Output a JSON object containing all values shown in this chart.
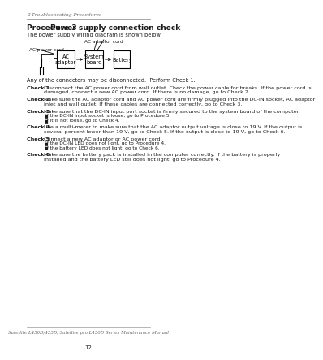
{
  "header_text": "2 Troubleshooting Procedures",
  "procedure_label": "Procedure 3",
  "procedure_tab": "    Power supply connection check",
  "intro_text": "The power supply wiring diagram is shown below:",
  "diagram_labels": {
    "ac_adaptor_cord": "AC adaptor cord",
    "ac_power_cord": "AC power cord",
    "ac_adaptor": "AC\nadaptor",
    "system_board": "System\nboard",
    "battery": "Battery"
  },
  "intro_check": "Any of the connectors may be disconnected.  Perform Check 1.",
  "checks": [
    {
      "label": "Check 1",
      "text": "Disconnect the AC power cord from wall outlet. Check the power cable for breaks. If the power cord is damaged, connect a new AC power cord. If there is no damage, go to Check 2.",
      "bullets": []
    },
    {
      "label": "Check 2",
      "text": "Make sure the AC adaptor cord and AC power cord are firmly plugged into the DC-IN socket, AC adaptor inlet and wall outlet. If these cables are connected correctly, go to Check 3.",
      "bullets": []
    },
    {
      "label": "Check 3",
      "text": "Make sure that the DC-IN input port socket is firmly secured to the system board of the computer.",
      "bullets": [
        "If the DC-IN input socket is loose, go to Procedure 5.",
        "If it is not loose, go to Check 4."
      ]
    },
    {
      "label": "Check 4",
      "text": "Use a multi-meter to make sure that the AC adaptor output voltage is close to 19 V.  If the output is several percent lower than 19 V, go to Check 5.  If the output is close to 19 V, go to Check 6.",
      "bullets": []
    },
    {
      "label": "Check 5",
      "text": "Connect a new AC adaptor or AC power cord.",
      "bullets": [
        "If the DC-IN LED does not light, go to Procedure 4.",
        "If the battery LED does not light, go to Check 6."
      ]
    },
    {
      "label": "Check 6",
      "text": "Make sure the battery pack is installed in the computer correctly.  If the battery is properly installed and the battery LED still does not light, go to Procedure 4.",
      "bullets": []
    }
  ],
  "footer_text": "Satellite L450D/455D, Satellite pro L450D Series Maintenance Manual",
  "page_number": "12",
  "bg_color": "#ffffff",
  "text_color": "#1a1a1a",
  "gray_color": "#666666",
  "line_color": "#999999"
}
